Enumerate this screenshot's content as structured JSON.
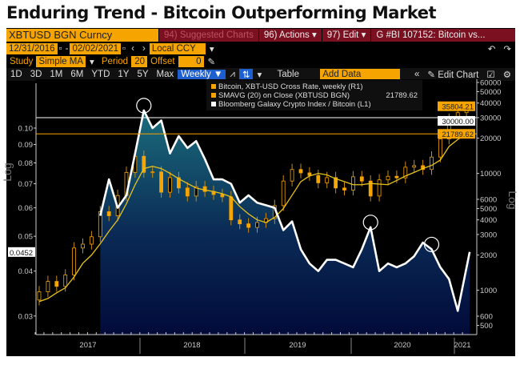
{
  "title": "Enduring Trend - Bitcoin Outperforming Market",
  "toolbar": {
    "security": "XBTUSD BGN Curncy",
    "suggested": "94) Suggested Charts",
    "actions": "96) Actions ▾",
    "edit": "97) Edit ▾",
    "chart_id": "G #BI 107152: Bitcoin vs...",
    "start_date": "12/31/2016",
    "end_date": "02/02/2021",
    "currency": "Local CCY",
    "study_label": "Study",
    "study": "Simple MA",
    "period_label": "Period",
    "period": "20",
    "offset_label": "Offset",
    "offset": "0",
    "ranges": [
      "1D",
      "3D",
      "1M",
      "6M",
      "YTD",
      "1Y",
      "5Y",
      "Max"
    ],
    "frequency": "Weekly ▼",
    "table": "Table",
    "add_data": "Add Data",
    "edit_chart": "Edit Chart"
  },
  "chart_data": {
    "type": "line",
    "legend": [
      {
        "name": "Bitcoin, XBT-USD Cross Rate, weekly (R1)",
        "color": "#f6a400",
        "value": ""
      },
      {
        "name": "SMAVG (20)  on Close (XBTUSD BGN)",
        "color": "#f6a400",
        "value": "21789.62"
      },
      {
        "name": "Bloomberg Galaxy Crypto Index / Bitcoin (L1)",
        "color": "#ffffff",
        "value": ""
      }
    ],
    "legend_position": "top-right",
    "x_labels": [
      "2017",
      "2018",
      "2019",
      "2020",
      "2021"
    ],
    "x_range": [
      "2016-12-31",
      "2021-02-02"
    ],
    "left_axis": {
      "label": "Log",
      "scale": "log",
      "ticks": [
        "0.10",
        "0.09",
        "0.08",
        "0.07",
        "0.06",
        "0.05",
        "0.04",
        "0.03"
      ],
      "last_value": "0.0452"
    },
    "right_axis": {
      "label": "Log",
      "scale": "log",
      "ticks": [
        "60000",
        "50000",
        "40000",
        "30000",
        "20000",
        "10000",
        "6000",
        "5000",
        "4000",
        "3000",
        "2000",
        "1000",
        "600",
        "500"
      ],
      "last_value": "35804.21",
      "ma_value": "21789.62",
      "hline": "30000.00"
    },
    "months": [
      "2017-01",
      "2017-02",
      "2017-03",
      "2017-04",
      "2017-05",
      "2017-06",
      "2017-07",
      "2017-08",
      "2017-09",
      "2017-10",
      "2017-11",
      "2017-12",
      "2018-01",
      "2018-02",
      "2018-03",
      "2018-04",
      "2018-05",
      "2018-06",
      "2018-07",
      "2018-08",
      "2018-09",
      "2018-10",
      "2018-11",
      "2018-12",
      "2019-01",
      "2019-02",
      "2019-03",
      "2019-04",
      "2019-05",
      "2019-06",
      "2019-07",
      "2019-08",
      "2019-09",
      "2019-10",
      "2019-11",
      "2019-12",
      "2020-01",
      "2020-02",
      "2020-03",
      "2020-04",
      "2020-05",
      "2020-06",
      "2020-07",
      "2020-08",
      "2020-09",
      "2020-10",
      "2020-11",
      "2020-12",
      "2021-01",
      "2021-02"
    ],
    "bitcoin_close": [
      970,
      1190,
      1080,
      1350,
      2300,
      2480,
      2870,
      4700,
      4340,
      6470,
      10200,
      14000,
      10200,
      10300,
      6900,
      9200,
      7500,
      6400,
      7700,
      7000,
      6600,
      6300,
      4000,
      3700,
      3450,
      3800,
      4100,
      5300,
      8600,
      10800,
      10100,
      9600,
      8300,
      9200,
      7500,
      7200,
      9350,
      8600,
      6400,
      8800,
      9450,
      9150,
      11300,
      11650,
      10800,
      13800,
      19700,
      29000,
      33100,
      35804.21
    ],
    "smavg_20": [
      800,
      850,
      950,
      1050,
      1300,
      1700,
      2000,
      2500,
      3200,
      4000,
      5500,
      8000,
      11000,
      11500,
      11000,
      10000,
      9000,
      8200,
      7500,
      7200,
      7000,
      6700,
      6300,
      5200,
      4500,
      4000,
      3800,
      4200,
      5000,
      6500,
      8500,
      9500,
      10000,
      9700,
      9000,
      8500,
      8000,
      8000,
      8200,
      8100,
      8000,
      8700,
      9500,
      10200,
      11000,
      11700,
      13000,
      17000,
      19500,
      21789.62
    ],
    "ratio_start": "2017-08",
    "galaxy_btc_ratio": [
      0.057,
      0.072,
      0.06,
      0.065,
      0.085,
      0.112,
      0.1,
      0.105,
      0.085,
      0.095,
      0.088,
      0.092,
      0.082,
      0.072,
      0.072,
      0.07,
      0.062,
      0.065,
      0.062,
      0.061,
      0.06,
      0.052,
      0.055,
      0.046,
      0.042,
      0.04,
      0.043,
      0.043,
      0.042,
      0.041,
      0.046,
      0.053,
      0.04,
      0.042,
      0.041,
      0.042,
      0.044,
      0.048,
      0.046,
      0.041,
      0.038,
      0.031,
      0.0452
    ]
  },
  "colors": {
    "bitcoin": "#f6a400",
    "sma": "#e8c21a",
    "ratio": "#ffffff",
    "area_top": "#1b6d7c",
    "area_bottom": "#020b3a",
    "hline_white": "#ffffff",
    "hline_orange": "#f6a400"
  }
}
